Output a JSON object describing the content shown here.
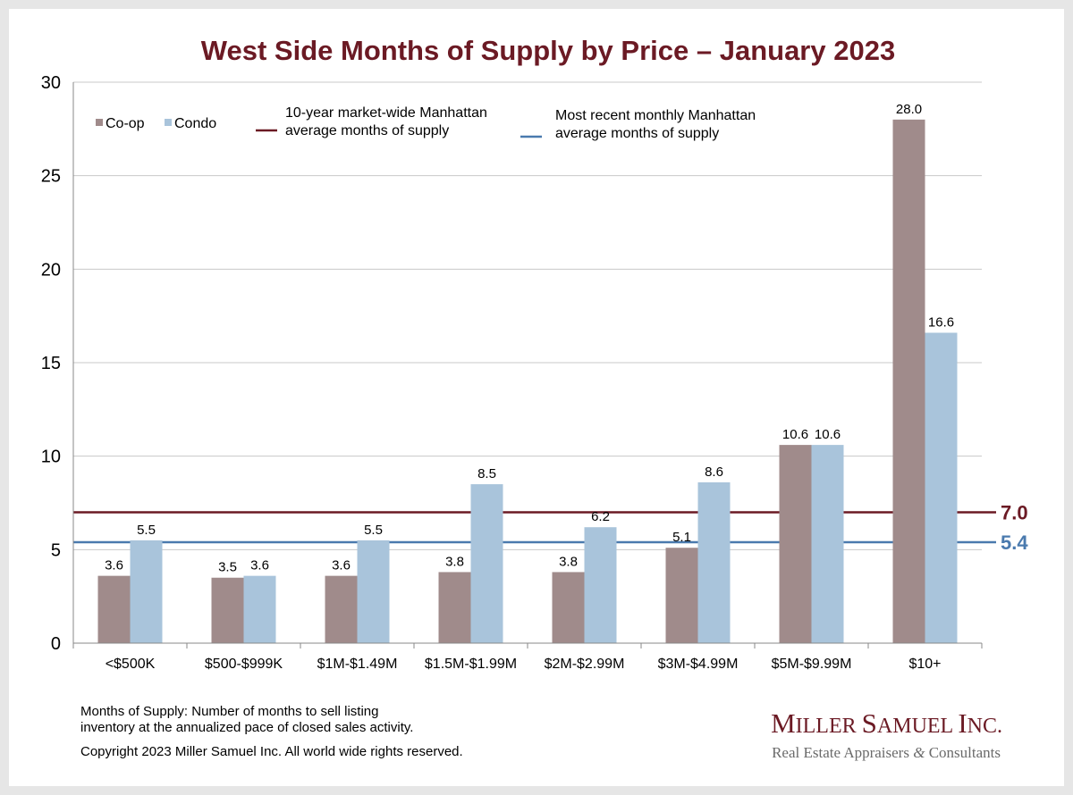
{
  "chart_data": {
    "type": "bar",
    "title": "West Side Months of Supply by Price – January 2023",
    "xlabel": "",
    "ylabel": "",
    "ylim": [
      0,
      30
    ],
    "yticks": [
      "0",
      "5",
      "10",
      "15",
      "20",
      "25",
      "30"
    ],
    "categories": [
      "<$500K",
      "$500-$999K",
      "$1M-$1.49M",
      "$1.5M-$1.99M",
      "$2M-$2.99M",
      "$3M-$4.99M",
      "$5M-$9.99M",
      "$10+"
    ],
    "series": [
      {
        "name": "Co-op",
        "color": "#a08b8b",
        "values": [
          3.6,
          3.5,
          3.6,
          3.8,
          3.8,
          5.1,
          10.6,
          28.0
        ],
        "labels": [
          "3.6",
          "3.5",
          "3.6",
          "3.8",
          "3.8",
          "5.1",
          "10.6",
          "28.0"
        ]
      },
      {
        "name": "Condo",
        "color": "#a9c4db",
        "values": [
          5.5,
          3.6,
          5.5,
          8.5,
          6.2,
          8.6,
          10.6,
          16.6
        ],
        "labels": [
          "5.5",
          "3.6",
          "5.5",
          "8.5",
          "6.2",
          "8.6",
          "10.6",
          "16.6"
        ]
      }
    ],
    "reference_lines": [
      {
        "name": "10-year market-wide Manhattan average months of supply",
        "legend_lines": [
          "10-year market-wide Manhattan",
          "average months of supply"
        ],
        "value": 7.0,
        "label": "7.0",
        "color": "#6b1a24"
      },
      {
        "name": "Most recent monthly Manhattan average months of supply",
        "legend_lines": [
          "Most recent monthly Manhattan",
          "average months of supply"
        ],
        "value": 5.4,
        "label": "5.4",
        "color": "#4a7aae"
      }
    ],
    "grid": true,
    "legend_position": "top-left"
  },
  "footnote": {
    "line1": "Months of Supply: Number of months to sell listing",
    "line2": "inventory at the annualized pace of closed sales activity.",
    "copyright": "Copyright 2023 Miller Samuel Inc.  All world wide rights reserved."
  },
  "brand": {
    "name_big_1": "M",
    "name_small_1": "ILLER ",
    "name_big_2": "S",
    "name_small_2": "AMUEL ",
    "name_big_3": "I",
    "name_small_3": "NC.",
    "tagline_1": "Real Estate Appraisers ",
    "tagline_amp": "&",
    "tagline_2": " Consultants"
  },
  "colors": {
    "title": "#6b1a24",
    "grid": "#c8c8c8",
    "background": "#ffffff"
  }
}
